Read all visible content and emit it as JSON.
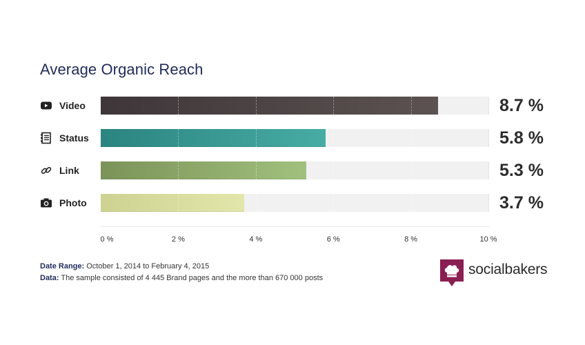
{
  "chart_data": {
    "type": "bar",
    "orientation": "horizontal",
    "title": "Average Organic Reach",
    "categories": [
      "Video",
      "Status",
      "Link",
      "Photo"
    ],
    "values": [
      8.7,
      5.8,
      5.3,
      3.7
    ],
    "value_labels": [
      "8.7 %",
      "5.8 %",
      "5.3 %",
      "3.7 %"
    ],
    "xlim": [
      0,
      10
    ],
    "xticks": [
      0,
      2,
      4,
      6,
      8,
      10
    ],
    "xtick_labels": [
      "0 %",
      "2 %",
      "4 %",
      "6 %",
      "8 %",
      "10 %"
    ],
    "icons": [
      "video-icon",
      "status-icon",
      "link-icon",
      "photo-icon"
    ],
    "colors": [
      [
        "#3e3639",
        "#5c5251"
      ],
      [
        "#2b8480",
        "#47aca4"
      ],
      [
        "#7b9358",
        "#a1c07d"
      ],
      [
        "#cdd292",
        "#e3e6aa"
      ]
    ],
    "grid": true,
    "legend": "none"
  },
  "footer": {
    "date_range_label": "Date Range:",
    "date_range_value": "October 1, 2014 to February 4, 2015",
    "data_label": "Data:",
    "data_value": "The sample consisted of 4 445 Brand pages and the more than 670 000 posts"
  },
  "brand": {
    "name": "socialbakers",
    "color": "#8a1f52"
  }
}
